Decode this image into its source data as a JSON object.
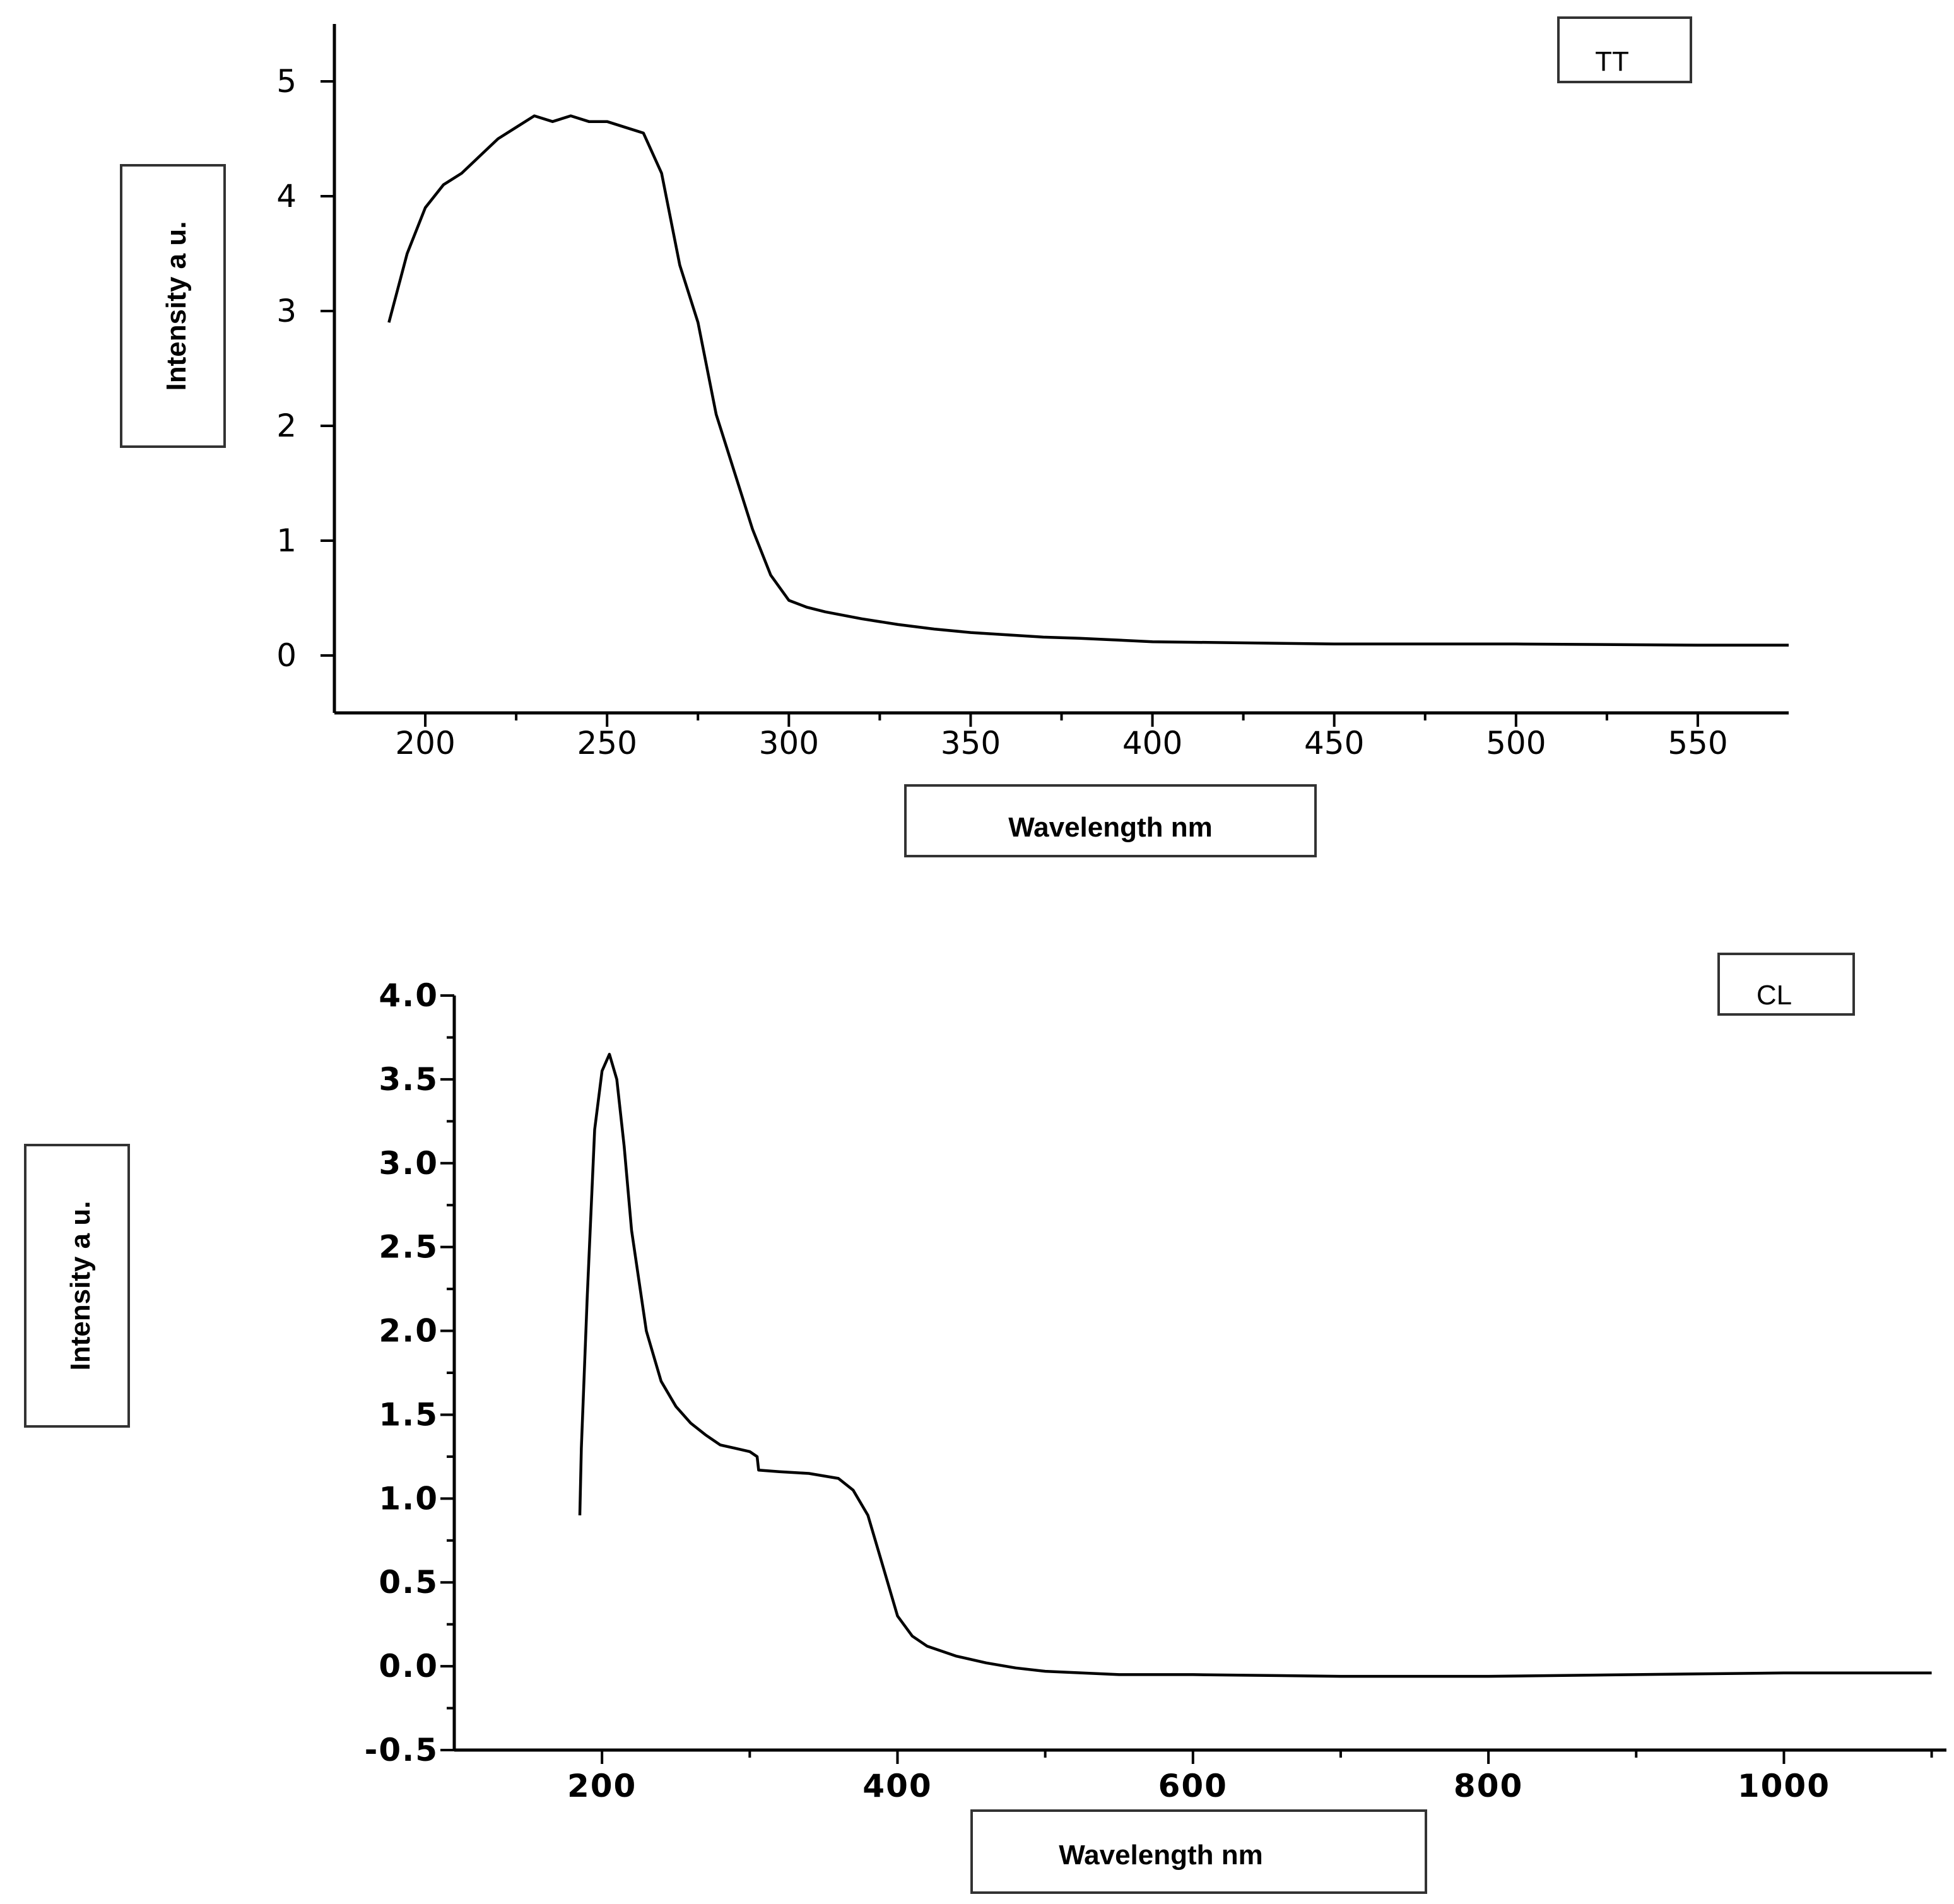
{
  "chart_data": [
    {
      "type": "line",
      "legend": "TT",
      "xlabel": "Wavelength nm",
      "ylabel": "Intensity a u.",
      "xlim": [
        175,
        575
      ],
      "ylim": [
        -0.5,
        5.5
      ],
      "xticks": [
        200,
        250,
        300,
        350,
        400,
        450,
        500,
        550
      ],
      "yticks": [
        0,
        1,
        2,
        3,
        4,
        5
      ],
      "series": [
        {
          "name": "TT",
          "x": [
            190,
            195,
            200,
            205,
            210,
            215,
            220,
            225,
            230,
            235,
            240,
            245,
            250,
            255,
            260,
            265,
            270,
            275,
            280,
            285,
            290,
            295,
            300,
            305,
            310,
            320,
            330,
            340,
            350,
            360,
            370,
            380,
            400,
            450,
            500,
            550,
            575
          ],
          "y": [
            2.9,
            3.5,
            3.9,
            4.1,
            4.2,
            4.35,
            4.5,
            4.6,
            4.7,
            4.65,
            4.7,
            4.65,
            4.65,
            4.6,
            4.55,
            4.2,
            3.4,
            2.9,
            2.1,
            1.6,
            1.1,
            0.7,
            0.48,
            0.42,
            0.38,
            0.32,
            0.27,
            0.23,
            0.2,
            0.18,
            0.16,
            0.15,
            0.12,
            0.1,
            0.1,
            0.09,
            0.09
          ]
        }
      ]
    },
    {
      "type": "line",
      "legend": "CL",
      "xlabel": "Wavelength nm",
      "ylabel": "Intensity a u.",
      "xlim": [
        100,
        1110
      ],
      "ylim": [
        -0.5,
        4.0
      ],
      "xticks": [
        200,
        400,
        600,
        800,
        1000
      ],
      "yticks": [
        -0.5,
        0.0,
        0.5,
        1.0,
        1.5,
        2.0,
        2.5,
        3.0,
        3.5,
        4.0
      ],
      "ytick_labels": [
        "-0.5",
        "0.0",
        "0.5",
        "1.0",
        "1.5",
        "2.0",
        "2.5",
        "3.0",
        "3.5",
        "4.0"
      ],
      "series": [
        {
          "name": "CL",
          "x": [
            185,
            186,
            190,
            195,
            200,
            205,
            210,
            215,
            220,
            230,
            240,
            250,
            260,
            270,
            280,
            290,
            300,
            305,
            306,
            320,
            340,
            360,
            370,
            380,
            390,
            400,
            410,
            420,
            440,
            460,
            480,
            500,
            550,
            600,
            700,
            800,
            900,
            1000,
            1100
          ],
          "y": [
            0.9,
            1.3,
            2.2,
            3.2,
            3.55,
            3.65,
            3.5,
            3.1,
            2.6,
            2.0,
            1.7,
            1.55,
            1.45,
            1.38,
            1.32,
            1.3,
            1.28,
            1.25,
            1.17,
            1.16,
            1.15,
            1.12,
            1.05,
            0.9,
            0.6,
            0.3,
            0.18,
            0.12,
            0.06,
            0.02,
            -0.01,
            -0.03,
            -0.05,
            -0.05,
            -0.06,
            -0.06,
            -0.05,
            -0.04,
            -0.04
          ]
        }
      ]
    }
  ]
}
